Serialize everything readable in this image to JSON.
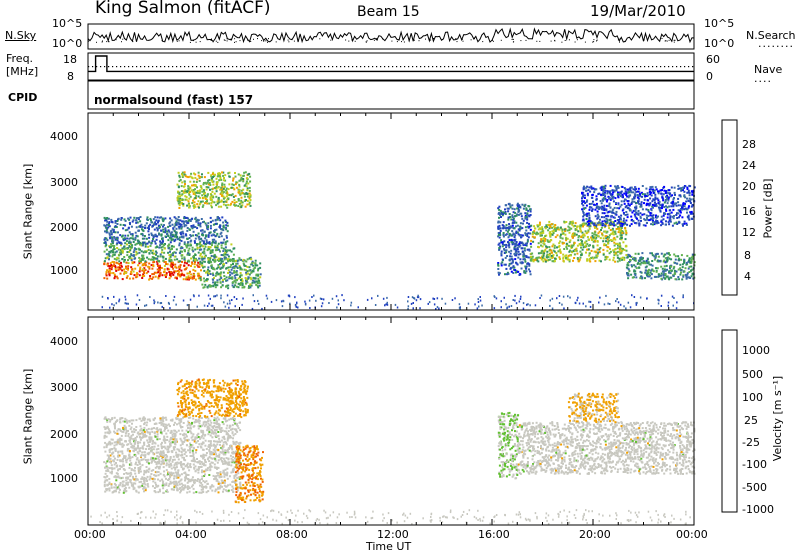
{
  "header": {
    "station": "King Salmon (fitACF)",
    "beam": "Beam 15",
    "date": "19/Mar/2010"
  },
  "noise_panel": {
    "left_label": "N.Sky",
    "right_label": "N.Search",
    "left_ticks": [
      "10^5",
      "10^0"
    ],
    "right_ticks": [
      "10^5",
      "10^0"
    ]
  },
  "freq_panel": {
    "left_label_1": "Freq.",
    "left_label_2": "[MHz]",
    "left_ticks": [
      "18",
      "8"
    ],
    "right_ticks": [
      "60",
      "0"
    ],
    "right_label": "Nave"
  },
  "cpid_panel": {
    "label": "CPID",
    "program": "normalsound (fast) 157"
  },
  "time_axis": {
    "label": "Time UT",
    "ticks": [
      "00:00",
      "04:00",
      "08:00",
      "12:00",
      "16:00",
      "20:00",
      "00:00"
    ]
  },
  "power_panel": {
    "ylabel": "Slant Range [km]",
    "yticks": [
      "4000",
      "3000",
      "2000",
      "1000"
    ],
    "colorbar_label": "Power [dB]",
    "colorbar_ticks": [
      "28",
      "24",
      "20",
      "16",
      "12",
      "8",
      "4"
    ]
  },
  "velocity_panel": {
    "ylabel": "Slant Range [km]",
    "yticks": [
      "4000",
      "3000",
      "2000",
      "1000"
    ],
    "colorbar_label": "Velocity [m s⁻¹]",
    "colorbar_ticks": [
      "1000",
      "500",
      "100",
      "25",
      "-25",
      "-100",
      "-500",
      "-1000"
    ]
  },
  "chart_data": [
    {
      "type": "heatmap",
      "title": "Power",
      "x_unit": "hours UT",
      "xlim": [
        0,
        24
      ],
      "ylim": [
        200,
        4600
      ],
      "y_unit": "km",
      "color_scale": {
        "min": 0,
        "max": 32,
        "unit": "dB",
        "colors": [
          "#0000ff",
          "#2040c0",
          "#3a6aa8",
          "#2f8f5f",
          "#5fb050",
          "#c0d020",
          "#f0a000",
          "#f06000",
          "#e00000"
        ]
      },
      "regions": [
        {
          "t": [
            0.6,
            4.5
          ],
          "r": [
            900,
            1300
          ],
          "value": 26
        },
        {
          "t": [
            0.6,
            5.8
          ],
          "r": [
            1300,
            1700
          ],
          "value": 14
        },
        {
          "t": [
            0.6,
            5.5
          ],
          "r": [
            1700,
            2300
          ],
          "value": 9
        },
        {
          "t": [
            3.5,
            6.4
          ],
          "r": [
            2500,
            3300
          ],
          "value": 18
        },
        {
          "t": [
            4.4,
            6.8
          ],
          "r": [
            700,
            1400
          ],
          "value": 14
        },
        {
          "t": [
            16.2,
            17.5
          ],
          "r": [
            1000,
            2600
          ],
          "value": 8
        },
        {
          "t": [
            17.5,
            21.3
          ],
          "r": [
            1300,
            2200
          ],
          "value": 18
        },
        {
          "t": [
            21.3,
            24.0
          ],
          "r": [
            900,
            1500
          ],
          "value": 12
        },
        {
          "t": [
            19.5,
            24.0
          ],
          "r": [
            2100,
            3000
          ],
          "value": 6
        }
      ]
    },
    {
      "type": "heatmap",
      "title": "Velocity",
      "x_unit": "hours UT",
      "xlim": [
        0,
        24
      ],
      "ylim": [
        200,
        4600
      ],
      "y_unit": "km",
      "color_scale": {
        "min": -1000,
        "max": 1000,
        "unit": "m s-1",
        "colors": [
          "#e00000",
          "#f06000",
          "#f0a000",
          "#c8c8c0",
          "#60c030",
          "#2f8f5f",
          "#2040c0"
        ]
      },
      "regions": [
        {
          "t": [
            0.6,
            6.0
          ],
          "r": [
            900,
            2500
          ],
          "value": 0
        },
        {
          "t": [
            3.5,
            6.3
          ],
          "r": [
            2500,
            3300
          ],
          "value": -300
        },
        {
          "t": [
            5.8,
            6.9
          ],
          "r": [
            700,
            1900
          ],
          "value": -400
        },
        {
          "t": [
            16.2,
            17.0
          ],
          "r": [
            1200,
            2600
          ],
          "value": 150
        },
        {
          "t": [
            17.0,
            24.0
          ],
          "r": [
            1300,
            2400
          ],
          "value": 0
        },
        {
          "t": [
            19.0,
            21.0
          ],
          "r": [
            2400,
            3000
          ],
          "value": -200
        }
      ]
    },
    {
      "type": "line",
      "title": "Frequency",
      "series": [
        {
          "x": [
            0.0,
            0.3,
            0.3,
            0.75,
            0.75,
            4.6,
            4.6,
            21.5,
            21.5,
            23.3,
            23.3,
            24.0
          ],
          "y": [
            11,
            11,
            18,
            18,
            11,
            11,
            11,
            11,
            11,
            11,
            11,
            11
          ]
        }
      ],
      "ylim": [
        8,
        18
      ]
    }
  ]
}
